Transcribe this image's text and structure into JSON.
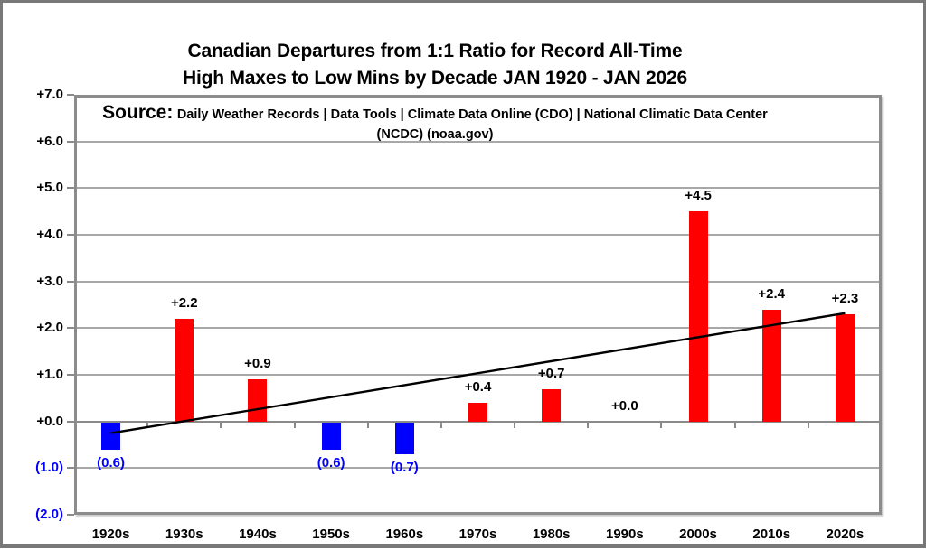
{
  "title": {
    "line1": "Canadian Departures from 1:1 Ratio for Record All-Time",
    "line2": "High Maxes to Low Mins by Decade JAN 1920 - JAN 2026"
  },
  "source": {
    "label": "Source:",
    "line1": "Daily Weather Records | Data Tools | Climate Data Online (CDO) | National Climatic Data Center",
    "line2": "(NCDC) (noaa.gov)"
  },
  "chart_data": {
    "type": "bar",
    "title": "Canadian Departures from 1:1 Ratio for Record All-Time High Maxes to Low Mins by Decade JAN 1920 - JAN 2026",
    "categories": [
      "1920s",
      "1930s",
      "1940s",
      "1950s",
      "1960s",
      "1970s",
      "1980s",
      "1990s",
      "2000s",
      "2010s",
      "2020s"
    ],
    "values": [
      -0.6,
      2.2,
      0.9,
      -0.6,
      -0.7,
      0.4,
      0.7,
      0.0,
      4.5,
      2.4,
      2.3
    ],
    "bar_labels": [
      "(0.6)",
      "+2.2",
      "+0.9",
      "(0.6)",
      "(0.7)",
      "+0.4",
      "+0.7",
      "+0.0",
      "+4.5",
      "+2.4",
      "+2.3"
    ],
    "ylim": [
      -2,
      7
    ],
    "ytick_step": 1,
    "ytick_labels_top_to_bottom": [
      "+7.0",
      "+6.0",
      "+5.0",
      "+4.0",
      "+3.0",
      "+2.0",
      "+1.0",
      "+0.0",
      "(1.0)",
      "(2.0)"
    ],
    "xlabel": "",
    "ylabel": "",
    "grid": true,
    "legend": "none",
    "trendline": {
      "type": "linear",
      "start_value": -0.25,
      "end_value": 2.32,
      "color": "#000000"
    },
    "colors": {
      "positive_bar": "#ff0000",
      "negative_bar": "#0000ff",
      "positive_label": "#000000",
      "negative_label": "#0000ff",
      "gridline": "#a8a8a8",
      "axis": "#8a8a8a",
      "plot_border": "#8c8c8c",
      "outer_border": "#787878",
      "background": "#ffffff"
    }
  }
}
